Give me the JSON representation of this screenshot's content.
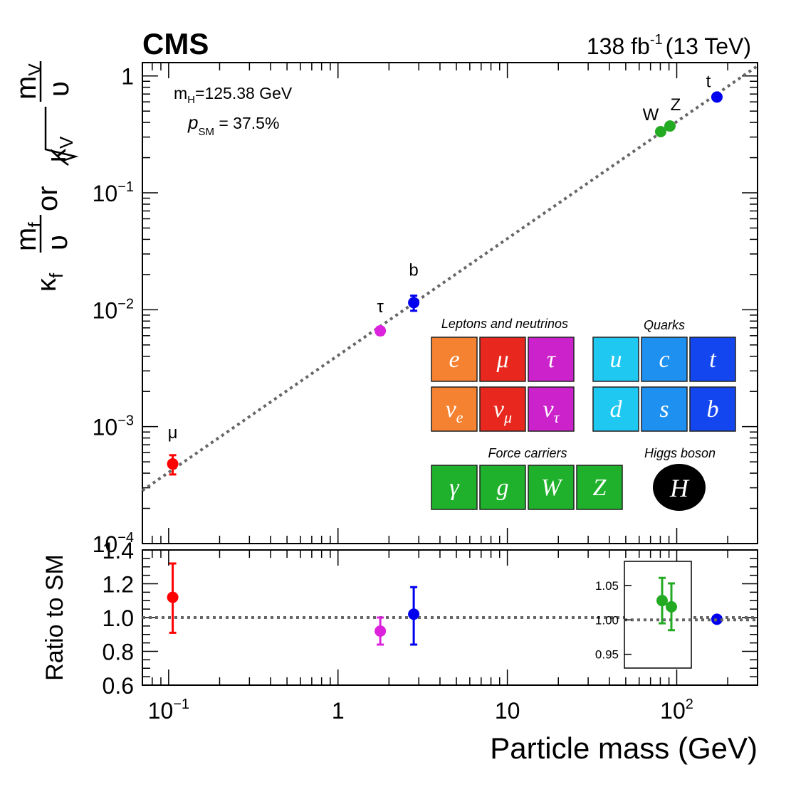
{
  "header": {
    "experiment": "CMS",
    "luminosity": "138 fb",
    "luminosity_exp": "-1",
    "energy": "(13 TeV)"
  },
  "annotations": {
    "mh_m": "m",
    "mh_sub": "H",
    "mh_val": "=125.38 GeV",
    "psm_p": "p",
    "psm_sub": "SM",
    "psm_val": " = 37.5%"
  },
  "y_axis": {
    "left_kappa": "κ",
    "left_f_sub": "f",
    "frac_mf_num": "m",
    "frac_mf_num_sub": "f",
    "frac_den": "υ",
    "or": "or",
    "sqrt_kappa": "κ",
    "sqrt_sub": "V",
    "frac_mv_num": "m",
    "frac_mv_num_sub": "V",
    "ratio_label": "Ratio to SM"
  },
  "x_axis": {
    "label": "Particle mass (GeV)"
  },
  "legend": {
    "leptons_title": "Leptons and neutrinos",
    "quarks_title": "Quarks",
    "force_title": "Force carriers",
    "higgs_title": "Higgs boson",
    "leptons": [
      {
        "sym": "e",
        "sub": "",
        "color": "#f58231"
      },
      {
        "sym": "μ",
        "sub": "",
        "color": "#e8281e"
      },
      {
        "sym": "τ",
        "sub": "",
        "color": "#cc22cc"
      },
      {
        "sym": "ν",
        "sub": "e",
        "color": "#f58231"
      },
      {
        "sym": "ν",
        "sub": "μ",
        "color": "#e8281e"
      },
      {
        "sym": "ν",
        "sub": "τ",
        "color": "#cc22cc"
      }
    ],
    "quarks": [
      {
        "sym": "u",
        "color": "#1ec8f0"
      },
      {
        "sym": "c",
        "color": "#1e90f0"
      },
      {
        "sym": "t",
        "color": "#1446f0"
      },
      {
        "sym": "d",
        "color": "#1ec8f0"
      },
      {
        "sym": "s",
        "color": "#1e90f0"
      },
      {
        "sym": "b",
        "color": "#1446f0"
      }
    ],
    "bosons": [
      {
        "sym": "γ",
        "color": "#1fb12c"
      },
      {
        "sym": "g",
        "color": "#1fb12c"
      },
      {
        "sym": "W",
        "color": "#1fb12c"
      },
      {
        "sym": "Z",
        "color": "#1fb12c"
      }
    ],
    "higgs": {
      "sym": "H",
      "color": "#000000"
    }
  },
  "chart_data": [
    {
      "type": "scatter",
      "panel": "main",
      "x_scale": "log",
      "y_scale": "log",
      "xlim": [
        0.07,
        300
      ],
      "ylim": [
        0.0001,
        1.3
      ],
      "reference_line": {
        "style": "dotted",
        "color": "#666666"
      },
      "points": [
        {
          "label": "μ",
          "x": 0.1057,
          "y": 0.00048,
          "err_up": 9e-05,
          "err_down": 9e-05,
          "color": "#ff0000"
        },
        {
          "label": "τ",
          "x": 1.777,
          "y": 0.0066,
          "err_up": 0.0005,
          "err_down": 0.0005,
          "color": "#dd22dd"
        },
        {
          "label": "b",
          "x": 2.8,
          "y": 0.0115,
          "err_up": 0.0017,
          "err_down": 0.0017,
          "color": "#0000ee"
        },
        {
          "label": "W",
          "x": 80.4,
          "y": 0.334,
          "err_up": 0.01,
          "err_down": 0.01,
          "color": "#22aa22"
        },
        {
          "label": "Z",
          "x": 91.19,
          "y": 0.373,
          "err_up": 0.012,
          "err_down": 0.012,
          "color": "#22aa22"
        },
        {
          "label": "t",
          "x": 172.7,
          "y": 0.66,
          "err_up": 0.01,
          "err_down": 0.01,
          "color": "#0000ee"
        }
      ],
      "yticks": [
        {
          "base": "1",
          "exp": "",
          "value": 1
        },
        {
          "base": "10",
          "exp": "−1",
          "value": 0.1
        },
        {
          "base": "10",
          "exp": "−2",
          "value": 0.01
        },
        {
          "base": "10",
          "exp": "−3",
          "value": 0.001
        },
        {
          "base": "10",
          "exp": "−4",
          "value": 0.0001
        }
      ]
    },
    {
      "type": "scatter",
      "panel": "ratio",
      "x_scale": "log",
      "xlim": [
        0.07,
        300
      ],
      "ylim": [
        0.6,
        1.4
      ],
      "reference_line": {
        "y": 1.0,
        "style": "dotted",
        "color": "#666666"
      },
      "points": [
        {
          "label": "μ",
          "x": 0.1057,
          "y": 1.12,
          "err_up": 0.2,
          "err_down": 0.21,
          "color": "#ff0000"
        },
        {
          "label": "τ",
          "x": 1.777,
          "y": 0.92,
          "err_up": 0.08,
          "err_down": 0.08,
          "color": "#dd22dd"
        },
        {
          "label": "b",
          "x": 2.8,
          "y": 1.02,
          "err_up": 0.16,
          "err_down": 0.18,
          "color": "#0000ee"
        },
        {
          "label": "t",
          "x": 172.7,
          "y": 0.99,
          "err_up": 0.02,
          "err_down": 0.02,
          "color": "#0000ee"
        }
      ],
      "yticks": [
        "1.4",
        "1.2",
        "1.0",
        "0.8",
        "0.6"
      ],
      "xticks": [
        {
          "base": "10",
          "exp": "−1",
          "value": 0.1
        },
        {
          "base": "1",
          "exp": "",
          "value": 1
        },
        {
          "base": "10",
          "exp": "",
          "value": 10
        },
        {
          "base": "10",
          "exp": "2",
          "value": 100
        }
      ]
    },
    {
      "type": "scatter",
      "panel": "ratio-inset",
      "ylim": [
        0.93,
        1.085
      ],
      "reference_line": {
        "y": 1.0,
        "style": "dotted",
        "color": "#666666"
      },
      "points": [
        {
          "label": "W",
          "y": 1.028,
          "err_up": 0.033,
          "err_down": 0.033,
          "color": "#22aa22"
        },
        {
          "label": "Z",
          "y": 1.019,
          "err_up": 0.034,
          "err_down": 0.034,
          "color": "#22aa22"
        }
      ],
      "yticks": [
        "1.05",
        "1.00",
        "0.95"
      ]
    }
  ]
}
